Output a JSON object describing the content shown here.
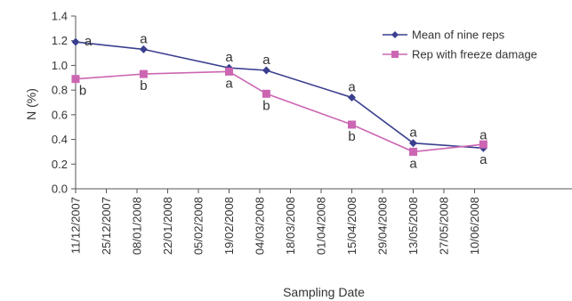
{
  "chart_data": {
    "type": "line",
    "xlabel": "Sampling Date",
    "ylabel": "N (%)",
    "ylim": [
      0.0,
      1.4
    ],
    "yticks": [
      "0.0",
      "0.2",
      "0.4",
      "0.6",
      "0.8",
      "1.0",
      "1.2",
      "1.4"
    ],
    "xlim": [
      "2007-12-11",
      "2008-06-14"
    ],
    "xticks": [
      {
        "date": "2007-12-11",
        "label": "11/12/2007"
      },
      {
        "date": "2007-12-25",
        "label": "25/12/2007"
      },
      {
        "date": "2008-01-08",
        "label": "08/01/2008"
      },
      {
        "date": "2008-01-22",
        "label": "22/01/2008"
      },
      {
        "date": "2008-02-05",
        "label": "05/02/2008"
      },
      {
        "date": "2008-02-19",
        "label": "19/02/2008"
      },
      {
        "date": "2008-03-04",
        "label": "04/03/2008"
      },
      {
        "date": "2008-03-18",
        "label": "18/03/2008"
      },
      {
        "date": "2008-04-01",
        "label": "01/04/2008"
      },
      {
        "date": "2008-04-15",
        "label": "15/04/2008"
      },
      {
        "date": "2008-04-29",
        "label": "29/04/2008"
      },
      {
        "date": "2008-05-13",
        "label": "13/05/2008"
      },
      {
        "date": "2008-05-27",
        "label": "27/05/2008"
      },
      {
        "date": "2008-06-10",
        "label": "10/06/2008"
      }
    ],
    "grid": false,
    "legend_position": "top-right",
    "series": [
      {
        "name": "Mean of nine reps",
        "color": "#3a3f8f",
        "marker": "diamond",
        "points": [
          {
            "x": "2007-12-11",
            "y": 1.19,
            "label": "a"
          },
          {
            "x": "2008-01-11",
            "y": 1.13,
            "label": "a"
          },
          {
            "x": "2008-02-19",
            "y": 0.98,
            "label": "a"
          },
          {
            "x": "2008-03-07",
            "y": 0.96,
            "label": "a"
          },
          {
            "x": "2008-04-15",
            "y": 0.74,
            "label": "a"
          },
          {
            "x": "2008-05-13",
            "y": 0.37,
            "label": "a"
          },
          {
            "x": "2008-06-14",
            "y": 0.33,
            "label": "a"
          }
        ]
      },
      {
        "name": "Rep with freeze damage",
        "color": "#cc66b2",
        "marker": "square",
        "points": [
          {
            "x": "2007-12-11",
            "y": 0.89,
            "label": "b"
          },
          {
            "x": "2008-01-11",
            "y": 0.93,
            "label": "b"
          },
          {
            "x": "2008-02-19",
            "y": 0.95,
            "label": "a"
          },
          {
            "x": "2008-03-07",
            "y": 0.77,
            "label": "b"
          },
          {
            "x": "2008-04-15",
            "y": 0.52,
            "label": "b"
          },
          {
            "x": "2008-05-13",
            "y": 0.3,
            "label": "a"
          },
          {
            "x": "2008-06-14",
            "y": 0.36,
            "label": "a"
          }
        ]
      }
    ]
  }
}
